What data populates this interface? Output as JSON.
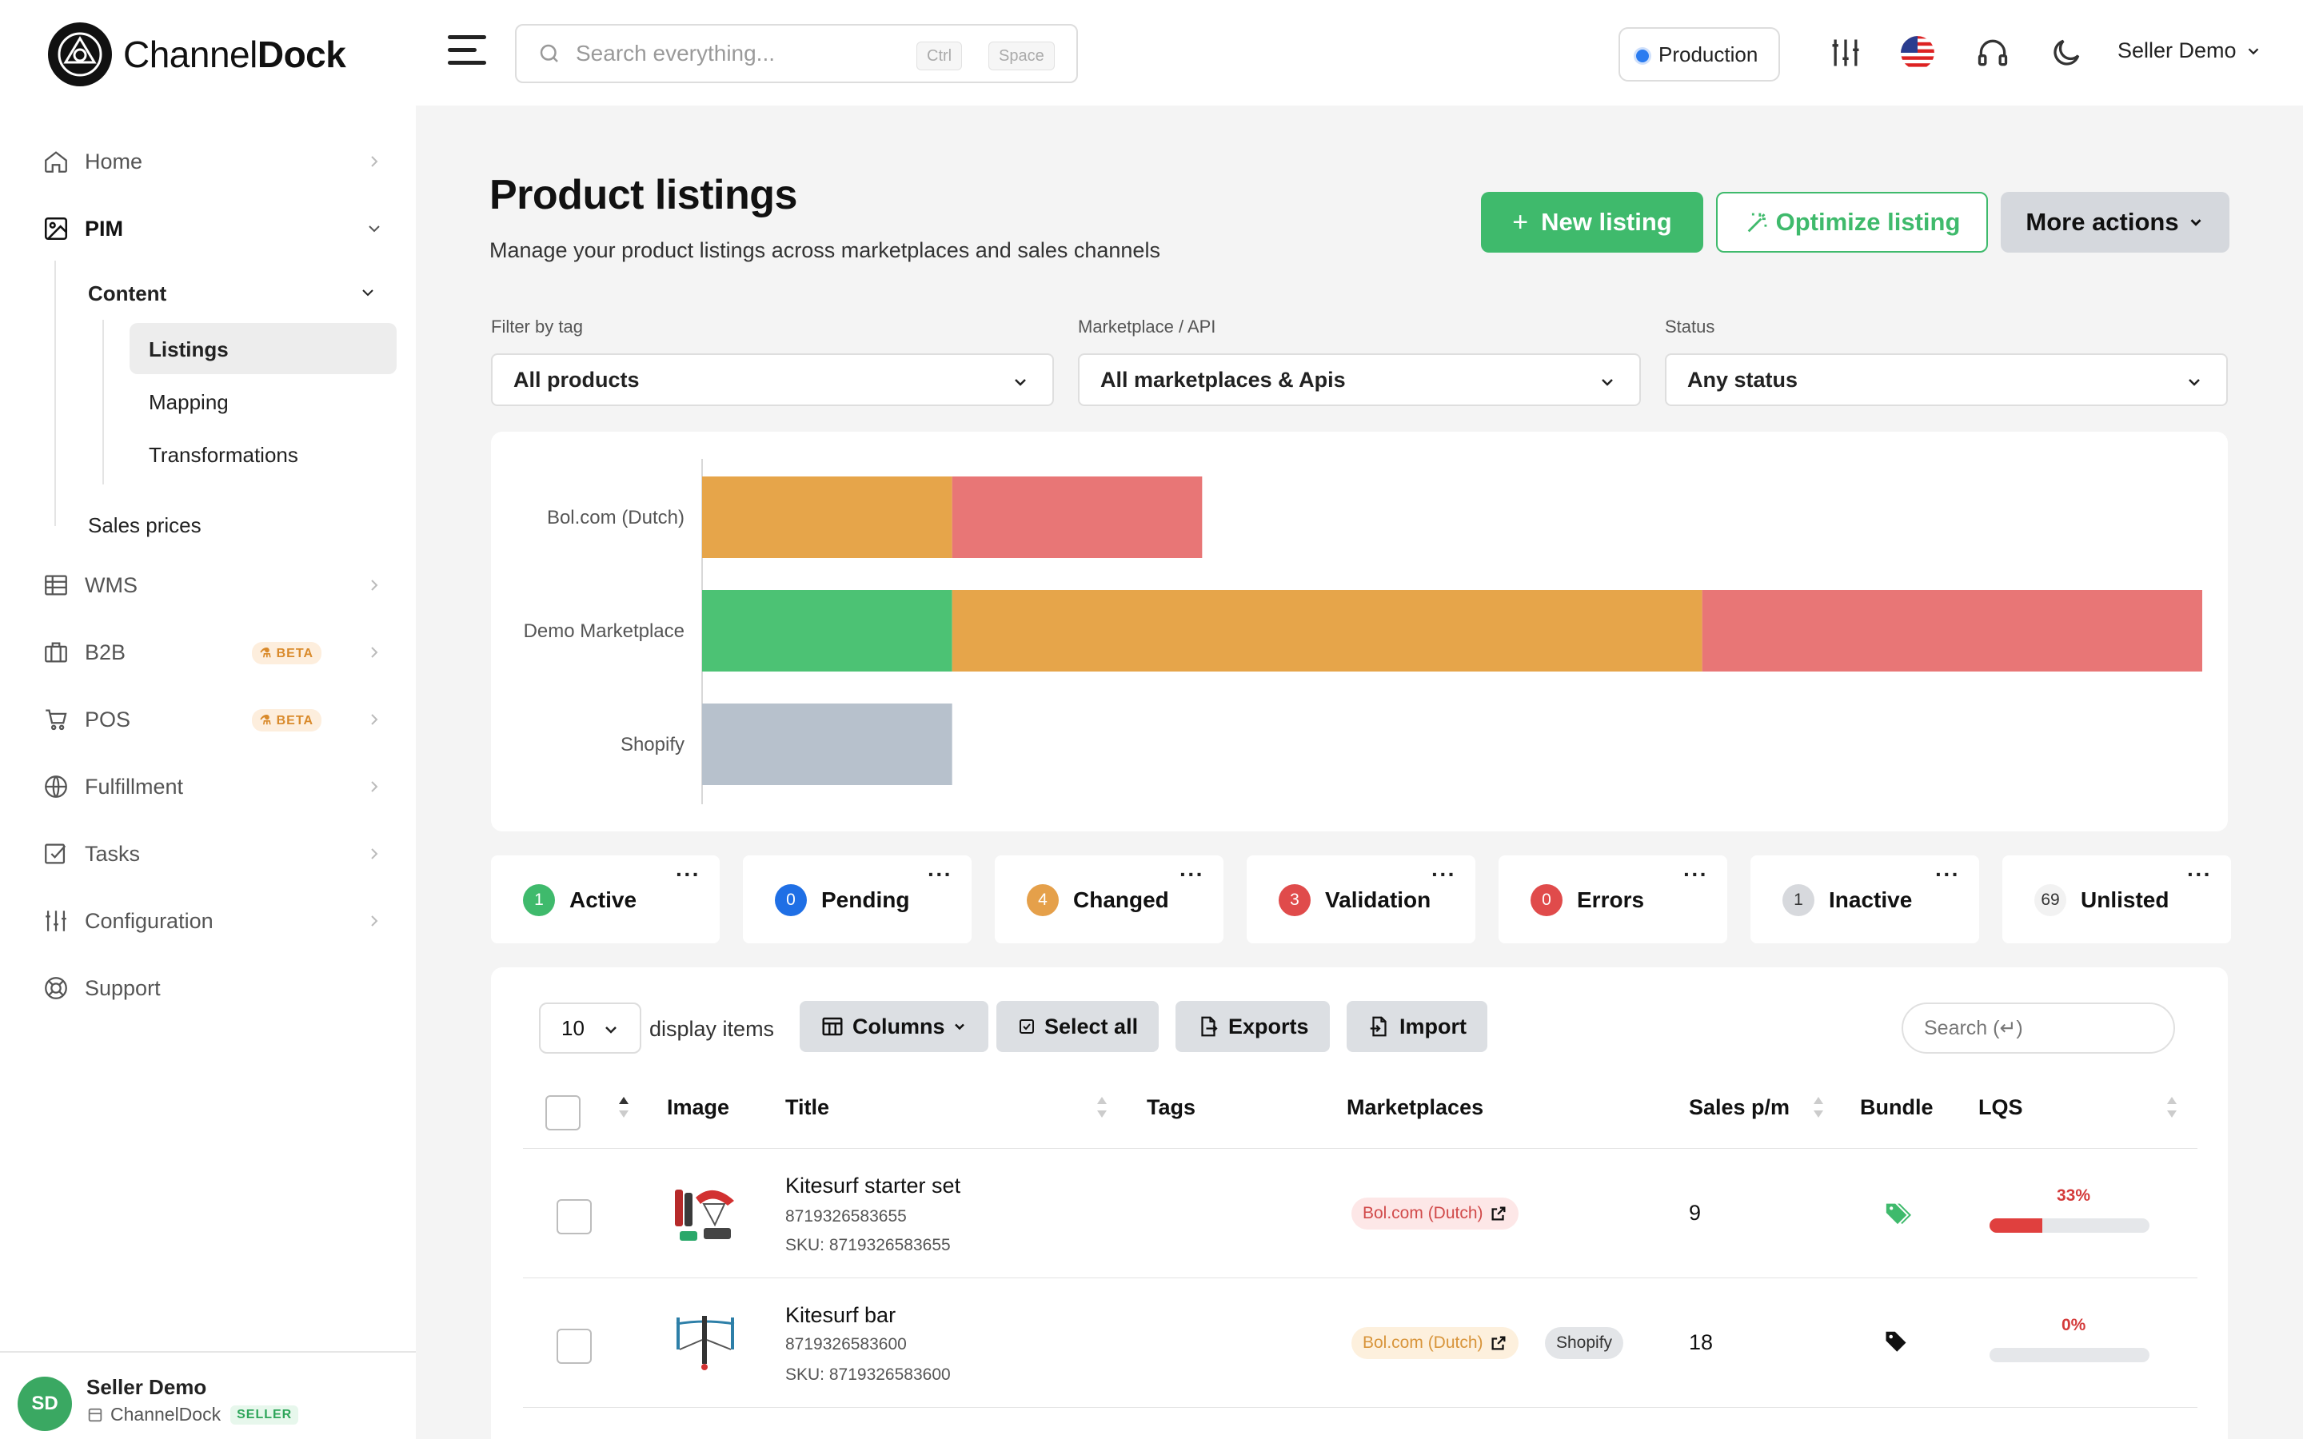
{
  "app": {
    "name_light": "Channel",
    "name_bold": "Dock"
  },
  "sidebar": {
    "items": [
      {
        "label": "Home",
        "icon": "home-icon"
      },
      {
        "label": "PIM",
        "icon": "image-icon"
      },
      {
        "label": "WMS",
        "icon": "table-icon"
      },
      {
        "label": "B2B",
        "icon": "briefcase-icon",
        "badge": "BETA"
      },
      {
        "label": "POS",
        "icon": "cart-icon",
        "badge": "BETA"
      },
      {
        "label": "Fulfillment",
        "icon": "globe-icon"
      },
      {
        "label": "Tasks",
        "icon": "checkbox-icon"
      },
      {
        "label": "Configuration",
        "icon": "sliders-icon"
      },
      {
        "label": "Support",
        "icon": "lifebuoy-icon"
      }
    ],
    "pim": {
      "content_label": "Content",
      "content_children": [
        "Listings",
        "Mapping",
        "Transformations"
      ],
      "sales_prices": "Sales prices"
    },
    "footer": {
      "initials": "SD",
      "name": "Seller Demo",
      "company": "ChannelDock",
      "role": "SELLER"
    }
  },
  "topbar": {
    "search_placeholder": "Search everything...",
    "kbd1": "Ctrl",
    "kbd2": "Space",
    "environment": "Production",
    "user": "Seller Demo"
  },
  "page": {
    "title": "Product listings",
    "subtitle": "Manage your product listings across marketplaces and sales channels",
    "new_listing": "New listing",
    "optimize_listing": "Optimize listing",
    "more_actions": "More actions"
  },
  "filters": [
    {
      "label": "Filter by tag",
      "value": "All products"
    },
    {
      "label": "Marketplace / API",
      "value": "All marketplaces & Apis"
    },
    {
      "label": "Status",
      "value": "Any status"
    }
  ],
  "chart_data": {
    "type": "bar",
    "orientation": "horizontal",
    "stacked": true,
    "categories": [
      "Bol.com (Dutch)",
      "Demo Marketplace",
      "Shopify"
    ],
    "series": [
      {
        "color": "#4cc274",
        "values": [
          0,
          1,
          0
        ]
      },
      {
        "color": "#e6a54a",
        "values": [
          1,
          3,
          0
        ]
      },
      {
        "color": "#e87676",
        "values": [
          1,
          2,
          0
        ]
      },
      {
        "color": "#b7c1cc",
        "values": [
          0,
          0,
          1
        ]
      }
    ],
    "xlim": [
      0,
      6
    ],
    "grid": false
  },
  "status_tabs": [
    {
      "count": "1",
      "label": "Active",
      "color": "#3fba6c"
    },
    {
      "count": "0",
      "label": "Pending",
      "color": "#1f6fe5"
    },
    {
      "count": "4",
      "label": "Changed",
      "color": "#e5a04a"
    },
    {
      "count": "3",
      "label": "Validation",
      "color": "#e04b4b"
    },
    {
      "count": "0",
      "label": "Errors",
      "color": "#e04b4b"
    },
    {
      "count": "1",
      "label": "Inactive",
      "color": "#d7d9dd"
    },
    {
      "count": "69",
      "label": "Unlisted",
      "color": "#f2f2f2"
    }
  ],
  "table": {
    "per_page": "10",
    "display_items": "display items",
    "columns_btn": "Columns",
    "select_all_btn": "Select all",
    "exports_btn": "Exports",
    "import_btn": "Import",
    "search_placeholder": "Search (↵)",
    "headers": [
      "Image",
      "Title",
      "Tags",
      "Marketplaces",
      "Sales p/m",
      "Bundle",
      "LQS"
    ],
    "rows": [
      {
        "title": "Kitesurf starter set",
        "ean": "8719326583655",
        "sku": "SKU: 8719326583655",
        "marketplaces": [
          {
            "label": "Bol.com (Dutch)",
            "style": "red"
          }
        ],
        "sales": "9",
        "bundle": "tags-icon",
        "bundle_color": "#3fba6c",
        "lqs": "33%",
        "lqs_value": 33
      },
      {
        "title": "Kitesurf bar",
        "ean": "8719326583600",
        "sku": "SKU: 8719326583600",
        "marketplaces": [
          {
            "label": "Bol.com (Dutch)",
            "style": "orange"
          },
          {
            "label": "Shopify",
            "style": "grey"
          }
        ],
        "sales": "18",
        "bundle": "tag-icon",
        "bundle_color": "#111111",
        "lqs": "0%",
        "lqs_value": 0
      }
    ]
  }
}
